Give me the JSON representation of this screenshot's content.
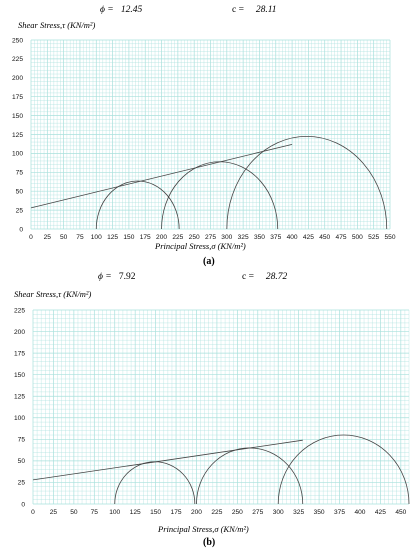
{
  "panels": [
    {
      "phi_label": "ϕ =",
      "phi_value": "12.45",
      "c_label": "c =",
      "c_value": "28.11",
      "caption": "(a)",
      "y_title": "Shear Stress,τ (KN/m²)",
      "x_title": "Principal Stress,σ (KN/m²)"
    },
    {
      "phi_label": "ϕ =",
      "phi_value": "7.92",
      "c_label": "c =",
      "c_value": "28.72",
      "caption": "(b)",
      "y_title": "Shear Stress,τ (KN/m²)",
      "x_title": "Principal Stress,σ (KN/m²)"
    }
  ],
  "chart_data": [
    {
      "type": "line",
      "title": "",
      "xlabel": "Principal Stress,σ (KN/m²)",
      "ylabel": "Shear Stress,τ (KN/m²)",
      "xlim": [
        0,
        550
      ],
      "ylim": [
        0,
        250
      ],
      "x_ticks": [
        0,
        25,
        50,
        75,
        100,
        125,
        150,
        175,
        200,
        225,
        250,
        275,
        300,
        325,
        350,
        375,
        400,
        425,
        450,
        475,
        500,
        525,
        550
      ],
      "y_ticks": [
        0,
        25,
        50,
        75,
        100,
        125,
        150,
        175,
        200,
        225,
        250
      ],
      "grid": true,
      "grid_color": "#a8e0dc",
      "mohr_circles": [
        {
          "sigma3": 100,
          "sigma1": 227
        },
        {
          "sigma3": 200,
          "sigma1": 378
        },
        {
          "sigma3": 300,
          "sigma1": 545
        }
      ],
      "envelope": {
        "x": [
          0,
          400
        ],
        "y": [
          28,
          112
        ]
      },
      "cohesion_c": 28.11,
      "friction_angle_phi": 12.45
    },
    {
      "type": "line",
      "title": "",
      "xlabel": "Principal Stress,σ (KN/m²)",
      "ylabel": "Shear Stress,τ (KN/m²)",
      "xlim": [
        0,
        460
      ],
      "ylim": [
        0,
        225
      ],
      "x_ticks": [
        0,
        25,
        50,
        75,
        100,
        125,
        150,
        175,
        200,
        225,
        250,
        275,
        300,
        325,
        350,
        375,
        400,
        425,
        450
      ],
      "y_ticks": [
        0,
        25,
        50,
        75,
        100,
        125,
        150,
        175,
        200,
        225
      ],
      "grid": true,
      "grid_color": "#a8e0dc",
      "mohr_circles": [
        {
          "sigma3": 100,
          "sigma1": 198
        },
        {
          "sigma3": 200,
          "sigma1": 330
        },
        {
          "sigma3": 300,
          "sigma1": 460
        }
      ],
      "envelope": {
        "x": [
          0,
          330
        ],
        "y": [
          28,
          74
        ]
      },
      "cohesion_c": 28.72,
      "friction_angle_phi": 7.92
    }
  ]
}
